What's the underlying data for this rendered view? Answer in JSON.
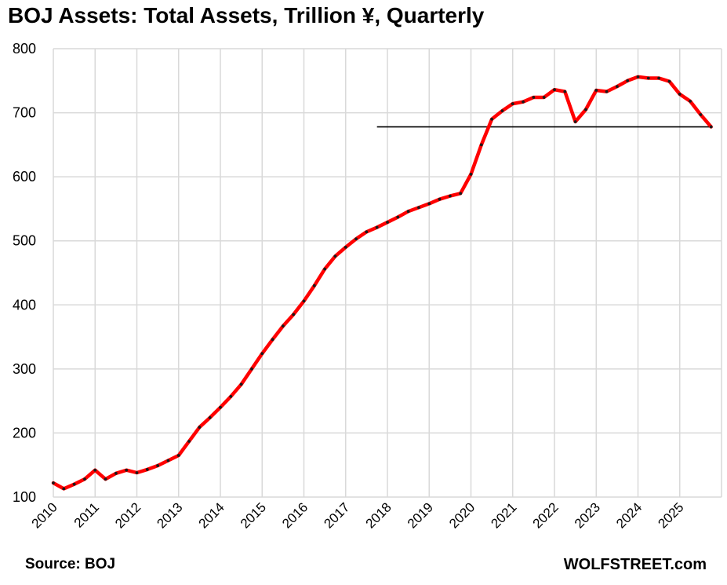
{
  "chart_data": {
    "type": "line",
    "title": "BOJ Assets: Total Assets, Trillion ¥, Quarterly",
    "source": "Source: BOJ",
    "brand": "WOLFSTREET.com",
    "xlabel": "",
    "ylabel": "",
    "ylim": [
      100,
      800
    ],
    "yticks": [
      100,
      200,
      300,
      400,
      500,
      600,
      700,
      800
    ],
    "xlim": [
      2010,
      2026
    ],
    "xticks": [
      "2010",
      "2011",
      "2012",
      "2013",
      "2014",
      "2015",
      "2016",
      "2017",
      "2018",
      "2019",
      "2020",
      "2021",
      "2022",
      "2023",
      "2024",
      "2025"
    ],
    "grid": true,
    "line_color": "#ff0000",
    "marker_color": "#1a1a1a",
    "reference_line": {
      "y": 678,
      "x_start": 2017.75,
      "x_end": 2025.75,
      "color": "#000000"
    },
    "series": [
      {
        "x": [
          2010.0,
          2010.25,
          2010.5,
          2010.75,
          2011.0,
          2011.25,
          2011.5,
          2011.75,
          2012.0,
          2012.25,
          2012.5,
          2012.75,
          2013.0,
          2013.25,
          2013.5,
          2013.75,
          2014.0,
          2014.25,
          2014.5,
          2014.75,
          2015.0,
          2015.25,
          2015.5,
          2015.75,
          2016.0,
          2016.25,
          2016.5,
          2016.75,
          2017.0,
          2017.25,
          2017.5,
          2017.75,
          2018.0,
          2018.25,
          2018.5,
          2018.75,
          2019.0,
          2019.25,
          2019.5,
          2019.75,
          2020.0,
          2020.25,
          2020.5,
          2020.75,
          2021.0,
          2021.25,
          2021.5,
          2021.75,
          2022.0,
          2022.25,
          2022.5,
          2022.75,
          2023.0,
          2023.25,
          2023.5,
          2023.75,
          2024.0,
          2024.25,
          2024.5,
          2024.75,
          2025.0,
          2025.25,
          2025.5,
          2025.75
        ],
        "values": [
          122,
          113,
          120,
          128,
          142,
          128,
          137,
          142,
          138,
          143,
          149,
          157,
          165,
          187,
          209,
          224,
          240,
          257,
          276,
          300,
          324,
          346,
          367,
          385,
          406,
          430,
          456,
          476,
          490,
          503,
          514,
          521,
          529,
          537,
          546,
          552,
          558,
          565,
          570,
          574,
          604,
          650,
          690,
          703,
          714,
          717,
          724,
          724,
          736,
          733,
          686,
          705,
          735,
          733,
          741,
          750,
          756,
          754,
          754,
          749,
          729,
          718,
          697,
          678
        ]
      }
    ]
  }
}
